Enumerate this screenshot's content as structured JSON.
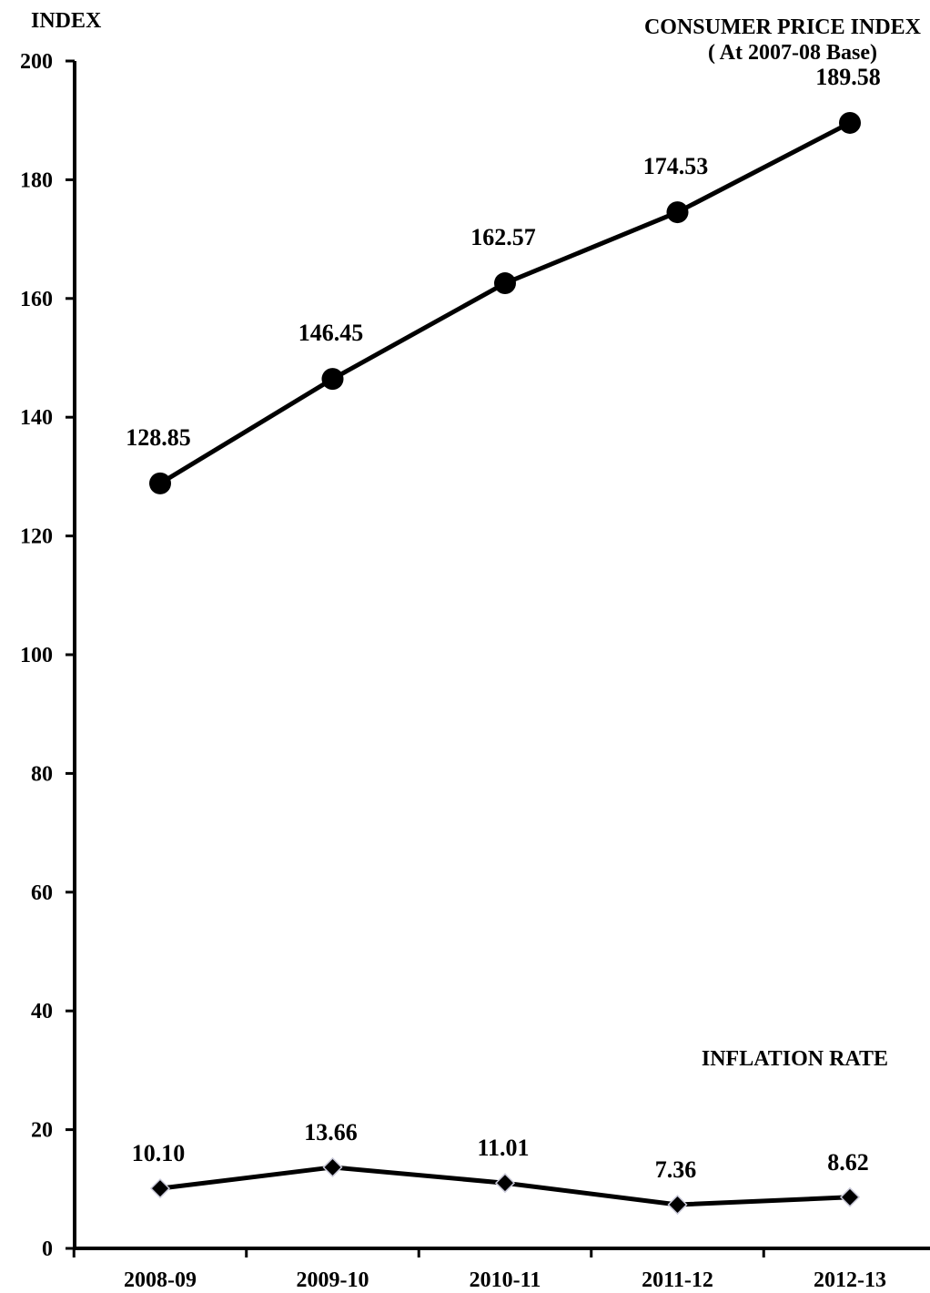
{
  "chart_data": {
    "type": "line",
    "ylabel": "INDEX",
    "title": "CONSUMER PRICE  INDEX",
    "subtitle": "( At  2007-08  Base)",
    "xlabel": "",
    "categories": [
      "2008-09",
      "2009-10",
      "2010-11",
      "2011-12",
      "2012-13"
    ],
    "ylim": [
      0,
      200
    ],
    "yticks": [
      "0",
      "20",
      "40",
      "60",
      "80",
      "100",
      "120",
      "140",
      "160",
      "180",
      "200"
    ],
    "grid": false,
    "series": [
      {
        "name": "CONSUMER PRICE  INDEX",
        "marker": "circle",
        "values": [
          128.85,
          146.45,
          162.57,
          174.53,
          189.58
        ],
        "labels": [
          "128.85",
          "146.45",
          "162.57",
          "174.53",
          "189.58"
        ]
      },
      {
        "name": "INFLATION RATE",
        "marker": "diamond",
        "values": [
          10.1,
          13.66,
          11.01,
          7.36,
          8.62
        ],
        "labels": [
          "10.10",
          "13.66",
          "11.01",
          "7.36",
          "8.62"
        ]
      }
    ],
    "colors": {
      "line": "#000000",
      "marker": "#000000"
    }
  }
}
